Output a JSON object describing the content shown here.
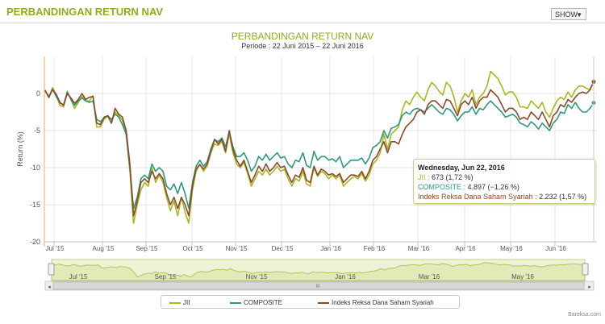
{
  "header": {
    "title": "PERBANDINGAN RETURN NAV",
    "show_label": "SHOW",
    "caret": "▼"
  },
  "chart_data": {
    "type": "line",
    "title": "PERBANDINGAN RETURN NAV",
    "subtitle": "Periode : 22 Juni 2015 – 22 Juni 2016",
    "ylabel": "Return (%)",
    "ylim": [
      -20,
      5
    ],
    "yticks": [
      0,
      -5,
      -10,
      -15,
      -20
    ],
    "grid": true,
    "x_month_labels": [
      "Jul '15",
      "Aug '15",
      "Sep '15",
      "Oct '15",
      "Nov '15",
      "Dec '15",
      "Jan '16",
      "Feb '16",
      "Mar '16",
      "Apr '16",
      "May '16",
      "Jun '16"
    ],
    "series": [
      {
        "name": "JII",
        "color": "#a8b81e",
        "values": [
          0.5,
          -0.6,
          0.8,
          -0.2,
          -1.6,
          -1.8,
          0.3,
          -0.8,
          -2.0,
          -1.2,
          -0.4,
          -1.0,
          -1.0,
          -0.3,
          -4.5,
          -4.5,
          -3.5,
          -3.0,
          -4.0,
          -2.5,
          -3.0,
          -3.6,
          -5.5,
          -10.5,
          -17.5,
          -15.0,
          -13.0,
          -12.0,
          -12.5,
          -10.0,
          -12.0,
          -11.0,
          -12.0,
          -14.0,
          -15.8,
          -14.5,
          -16.5,
          -14.0,
          -16.0,
          -17.5,
          -13.0,
          -10.5,
          -9.5,
          -10.5,
          -9.8,
          -8.0,
          -6.8,
          -7.0,
          -6.5,
          -8.0,
          -5.5,
          -8.0,
          -9.5,
          -10.0,
          -9.3,
          -10.8,
          -12.5,
          -11.5,
          -10.5,
          -11.0,
          -10.2,
          -11.0,
          -10.5,
          -9.8,
          -10.5,
          -10.2,
          -11.5,
          -12.5,
          -11.5,
          -11.8,
          -10.5,
          -12.2,
          -12.5,
          -10.0,
          -11.2,
          -10.5,
          -10.8,
          -11.5,
          -11.0,
          -11.5,
          -11.0,
          -12.5,
          -12.0,
          -11.5,
          -11.2,
          -11.5,
          -10.8,
          -11.8,
          -11.0,
          -9.5,
          -9.0,
          -8.0,
          -5.5,
          -7.5,
          -5.5,
          -5.0,
          -4.5,
          -2.2,
          -1.0,
          -1.5,
          -0.5,
          0.2,
          -0.5,
          -1.0,
          0.5,
          1.5,
          1.0,
          0.3,
          -0.2,
          1.5,
          1.0,
          -0.4,
          -2.5,
          -1.0,
          0.0,
          -0.5,
          0.5,
          -1.5,
          -0.5,
          0.0,
          1.0,
          3.0,
          2.5,
          2.0,
          1.0,
          -0.2,
          0.2,
          0.2,
          -0.5,
          -1.8,
          -1.8,
          -2.0,
          -1.0,
          -1.5,
          -2.0,
          -1.2,
          -2.5,
          -3.2,
          -2.0,
          -1.0,
          -0.5,
          -0.8,
          0.2,
          -0.5,
          0.5,
          1.0,
          1.0,
          0.7,
          0.5,
          1.72
        ]
      },
      {
        "name": "COMPOSITE",
        "color": "#2e9a7a",
        "values": [
          0.3,
          -0.4,
          0.6,
          -0.4,
          -1.3,
          -1.5,
          0.2,
          -0.8,
          -1.6,
          -1.0,
          -0.6,
          -1.0,
          -1.2,
          -1.0,
          -3.5,
          -3.8,
          -3.3,
          -3.0,
          -3.5,
          -2.8,
          -3.2,
          -4.2,
          -5.5,
          -10.0,
          -15.5,
          -14.0,
          -11.5,
          -11.0,
          -11.5,
          -9.5,
          -10.5,
          -10.0,
          -10.5,
          -12.5,
          -13.0,
          -12.2,
          -13.5,
          -12.0,
          -13.5,
          -15.5,
          -12.0,
          -9.8,
          -9.0,
          -9.8,
          -9.2,
          -7.5,
          -6.2,
          -6.5,
          -6.0,
          -7.2,
          -5.2,
          -7.2,
          -8.5,
          -8.5,
          -8.0,
          -9.0,
          -10.5,
          -9.8,
          -8.5,
          -9.0,
          -8.2,
          -9.0,
          -8.5,
          -8.0,
          -8.7,
          -8.5,
          -9.5,
          -10.0,
          -9.0,
          -9.2,
          -8.0,
          -9.7,
          -10.0,
          -7.8,
          -9.0,
          -8.5,
          -8.5,
          -9.0,
          -8.8,
          -9.2,
          -8.5,
          -10.0,
          -9.5,
          -9.0,
          -9.0,
          -9.0,
          -8.7,
          -9.5,
          -8.7,
          -7.3,
          -7.0,
          -6.5,
          -5.0,
          -6.0,
          -4.7,
          -4.5,
          -4.2,
          -3.0,
          -2.5,
          -2.8,
          -2.2,
          -2.0,
          -2.2,
          -2.5,
          -2.0,
          -1.5,
          -2.0,
          -2.5,
          -2.8,
          -2.0,
          -2.2,
          -2.8,
          -3.7,
          -3.0,
          -2.5,
          -2.5,
          -1.8,
          -2.8,
          -2.0,
          -2.2,
          -1.5,
          -1.0,
          -1.5,
          -2.0,
          -2.5,
          -3.2,
          -3.0,
          -2.8,
          -3.2,
          -4.0,
          -4.2,
          -4.5,
          -3.8,
          -4.2,
          -4.8,
          -4.0,
          -4.5,
          -5.0,
          -4.0,
          -3.5,
          -2.5,
          -2.7,
          -1.5,
          -2.0,
          -1.2,
          -2.0,
          -2.5,
          -2.5,
          -2.0,
          -1.26
        ]
      },
      {
        "name": "Indeks Reksa Dana Saham Syariah",
        "color": "#8b4a2b",
        "values": [
          0.4,
          -0.5,
          0.5,
          -0.1,
          -1.2,
          -1.6,
          0.0,
          -0.6,
          -1.3,
          -0.8,
          0.0,
          -0.8,
          -0.5,
          -0.4,
          -4.0,
          -4.2,
          -3.2,
          -3.0,
          -4.0,
          -2.0,
          -2.8,
          -3.2,
          -5.0,
          -9.5,
          -16.5,
          -14.5,
          -12.0,
          -11.5,
          -12.0,
          -10.5,
          -11.5,
          -10.8,
          -11.5,
          -13.5,
          -15.0,
          -14.0,
          -15.5,
          -14.0,
          -15.0,
          -16.5,
          -12.5,
          -10.2,
          -9.6,
          -10.2,
          -9.5,
          -7.8,
          -6.2,
          -6.8,
          -6.2,
          -7.8,
          -5.0,
          -7.6,
          -9.0,
          -9.8,
          -9.0,
          -10.5,
          -12.0,
          -11.0,
          -9.8,
          -10.5,
          -9.5,
          -10.5,
          -10.0,
          -9.3,
          -10.0,
          -9.8,
          -11.0,
          -12.0,
          -11.0,
          -11.3,
          -10.0,
          -11.7,
          -12.0,
          -9.8,
          -11.0,
          -10.2,
          -10.5,
          -11.0,
          -10.8,
          -11.2,
          -10.8,
          -12.0,
          -11.5,
          -11.0,
          -11.0,
          -11.2,
          -10.5,
          -11.5,
          -10.5,
          -9.0,
          -8.5,
          -7.5,
          -6.5,
          -8.0,
          -6.5,
          -6.5,
          -6.8,
          -5.5,
          -4.5,
          -4.0,
          -3.5,
          -2.5,
          -2.2,
          -2.8,
          -1.5,
          -1.0,
          -1.0,
          -1.5,
          -2.0,
          -0.8,
          -1.0,
          -2.0,
          -3.0,
          -1.5,
          -1.0,
          -1.5,
          -0.5,
          -2.0,
          -1.0,
          -0.5,
          -0.5,
          0.5,
          0.0,
          -0.5,
          -1.5,
          -2.5,
          -2.0,
          -2.0,
          -2.5,
          -3.5,
          -3.2,
          -3.5,
          -2.5,
          -3.0,
          -3.5,
          -2.5,
          -3.5,
          -4.5,
          -3.0,
          -2.5,
          -1.5,
          -1.8,
          -0.8,
          -1.2,
          -0.5,
          0.0,
          0.2,
          0.0,
          0.5,
          1.57
        ]
      }
    ],
    "navigator_labels": [
      "Jul '15",
      "Sep '15",
      "Nov '15",
      "Jan '16",
      "Mar '16",
      "May '16"
    ],
    "tooltip": {
      "date": "Wednesday, Jun 22, 2016",
      "rows": [
        {
          "label": "JII",
          "value": "673 (1,72 %)",
          "color": "#a8b81e"
        },
        {
          "label": "COMPOSITE",
          "value": "4.897 (−1,26 %)",
          "color": "#2e9a7a"
        },
        {
          "label": "Indeks Reksa Dana Saham Syariah",
          "value": "2.232 (1,57 %)",
          "color": "#8b4a2b"
        }
      ]
    },
    "legend_position": "bottom"
  },
  "scrollbar": {
    "handle_glyph": "III"
  },
  "credit": "Bareksa.com"
}
